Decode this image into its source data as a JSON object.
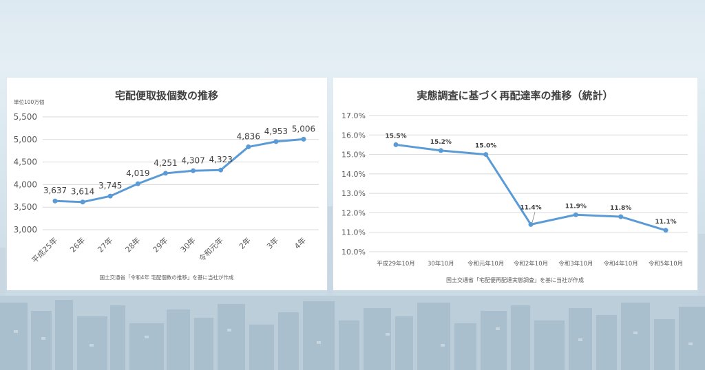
{
  "chart_data": [
    {
      "type": "line",
      "title": "宅配便取扱個数の推移",
      "unit_label": "単位100万個",
      "categories": [
        "平成25年",
        "26年",
        "27年",
        "28年",
        "29年",
        "30年",
        "令和元年",
        "2年",
        "3年",
        "4年"
      ],
      "values": [
        3637,
        3614,
        3745,
        4019,
        4251,
        4307,
        4323,
        4836,
        4953,
        5006
      ],
      "data_labels": [
        "3,637",
        "3,614",
        "3,745",
        "4,019",
        "4,251",
        "4,307",
        "4,323",
        "4,836",
        "4,953",
        "5,006"
      ],
      "yticks": [
        "5,500",
        "5,000",
        "4,500",
        "4,000",
        "3,500",
        "3,000"
      ],
      "ylim": [
        3000,
        5500
      ],
      "grid": true,
      "legend": "none",
      "source_note": "国土交通省「令和4年 宅配個数の推移」を基に当社が作成",
      "line_color": "#5b9bd5"
    },
    {
      "type": "line",
      "title": "実態調査に基づく再配達率の推移（統計）",
      "categories": [
        "平成29年10月",
        "30年10月",
        "令和元年10月",
        "令和2年10月",
        "令和3年10月",
        "令和4年10月",
        "令和5年10月"
      ],
      "values": [
        15.5,
        15.2,
        15.0,
        11.4,
        11.9,
        11.8,
        11.1
      ],
      "data_labels": [
        "15.5%",
        "15.2%",
        "15.0%",
        "11.4%",
        "11.9%",
        "11.8%",
        "11.1%"
      ],
      "yticks": [
        "17.0%",
        "16.0%",
        "15.0%",
        "14.0%",
        "13.0%",
        "12.0%",
        "11.0%",
        "10.0%"
      ],
      "ylim": [
        10,
        17
      ],
      "grid": true,
      "legend": "none",
      "source_note": "国土交通省「宅配便再配達実態調査」を基に当社が作成",
      "line_color": "#5b9bd5"
    }
  ]
}
